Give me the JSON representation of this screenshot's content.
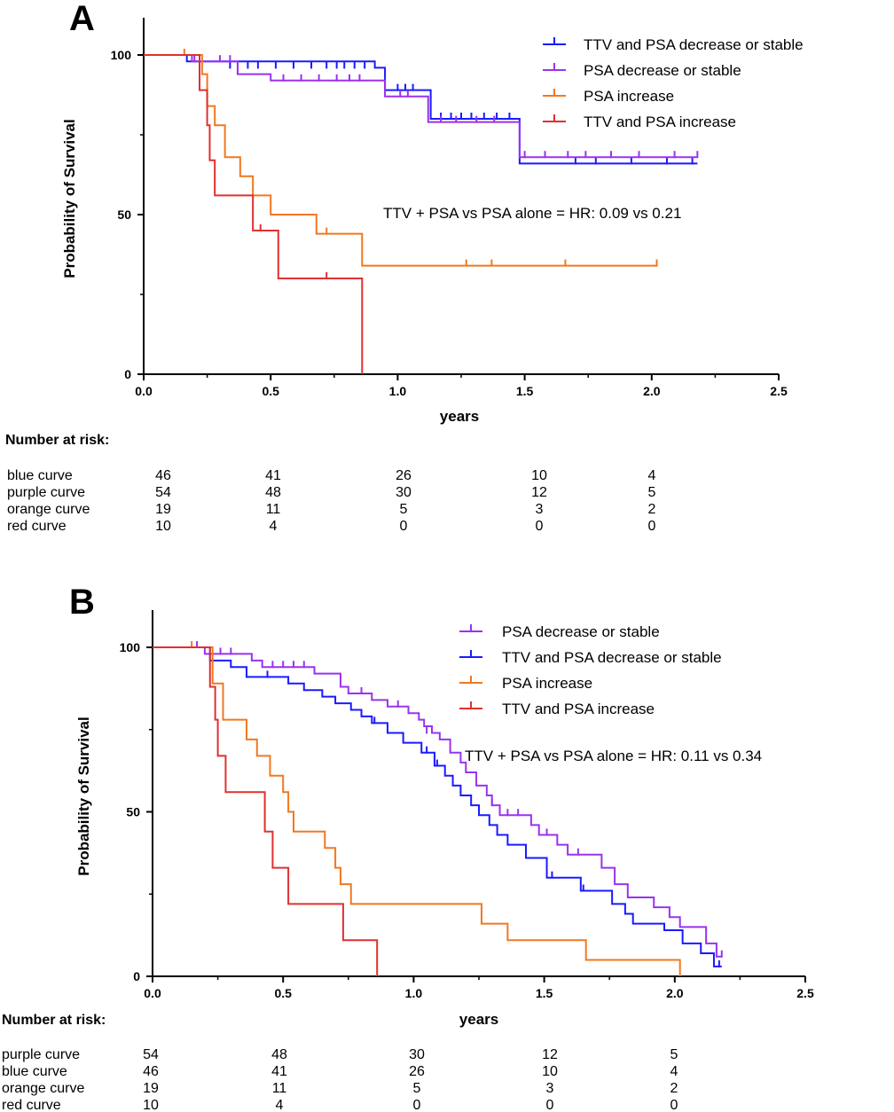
{
  "chart_data": [
    {
      "panel": "A",
      "type": "line",
      "xlabel": "years",
      "ylabel": "Probability of Survival",
      "xlim": [
        0,
        2.5
      ],
      "ylim": [
        0,
        100
      ],
      "xticks": [
        "0.0",
        "0.5",
        "1.0",
        "1.5",
        "2.0",
        "2.5"
      ],
      "yticks": [
        "0",
        "50",
        "100"
      ],
      "legend_position": "top-right",
      "annotation": "TTV + PSA vs PSA alone = HR: 0.09 vs 0.21",
      "series": [
        {
          "name": "TTV and PSA decrease or stable",
          "color": "#1a1aff",
          "steps": [
            [
              0,
              100
            ],
            [
              0.17,
              98
            ],
            [
              0.91,
              96
            ],
            [
              0.95,
              89
            ],
            [
              1.13,
              80
            ],
            [
              1.48,
              66
            ],
            [
              2.18,
              66
            ]
          ],
          "censors": [
            [
              0.34,
              96
            ],
            [
              0.41,
              96
            ],
            [
              0.45,
              96
            ],
            [
              0.52,
              96
            ],
            [
              0.59,
              96
            ],
            [
              0.66,
              96
            ],
            [
              0.72,
              96
            ],
            [
              0.76,
              96
            ],
            [
              0.79,
              96
            ],
            [
              0.83,
              96
            ],
            [
              0.87,
              96
            ],
            [
              1.0,
              89
            ],
            [
              1.03,
              89
            ],
            [
              1.06,
              89
            ],
            [
              1.17,
              80
            ],
            [
              1.21,
              80
            ],
            [
              1.25,
              80
            ],
            [
              1.29,
              80
            ],
            [
              1.34,
              80
            ],
            [
              1.39,
              80
            ],
            [
              1.44,
              80
            ],
            [
              1.7,
              66
            ],
            [
              1.78,
              66
            ],
            [
              1.92,
              66
            ],
            [
              2.06,
              66
            ],
            [
              2.16,
              66
            ]
          ]
        },
        {
          "name": "PSA decrease or stable",
          "color": "#9933ee",
          "steps": [
            [
              0,
              100
            ],
            [
              0.19,
              98
            ],
            [
              0.37,
              94
            ],
            [
              0.5,
              92
            ],
            [
              0.95,
              87
            ],
            [
              1.12,
              79
            ],
            [
              1.48,
              68
            ],
            [
              2.18,
              68
            ]
          ],
          "censors": [
            [
              0.2,
              98
            ],
            [
              0.3,
              98
            ],
            [
              0.34,
              98
            ],
            [
              0.55,
              92
            ],
            [
              0.62,
              92
            ],
            [
              0.69,
              92
            ],
            [
              0.76,
              92
            ],
            [
              0.81,
              92
            ],
            [
              0.85,
              92
            ],
            [
              1.01,
              87
            ],
            [
              1.04,
              87
            ],
            [
              1.17,
              79
            ],
            [
              1.23,
              79
            ],
            [
              1.31,
              79
            ],
            [
              1.38,
              79
            ],
            [
              1.5,
              68
            ],
            [
              1.58,
              68
            ],
            [
              1.67,
              68
            ],
            [
              1.74,
              68
            ],
            [
              1.84,
              68
            ],
            [
              1.95,
              68
            ],
            [
              2.09,
              68
            ],
            [
              2.18,
              68
            ]
          ]
        },
        {
          "name": "PSA increase",
          "color": "#f07820",
          "steps": [
            [
              0,
              100
            ],
            [
              0.23,
              94
            ],
            [
              0.25,
              84
            ],
            [
              0.28,
              78
            ],
            [
              0.32,
              68
            ],
            [
              0.38,
              62
            ],
            [
              0.43,
              56
            ],
            [
              0.5,
              50
            ],
            [
              0.68,
              44
            ],
            [
              0.86,
              34
            ],
            [
              2.02,
              34
            ]
          ],
          "censors": [
            [
              0.16,
              100
            ],
            [
              0.72,
              44
            ],
            [
              1.27,
              34
            ],
            [
              1.37,
              34
            ],
            [
              1.66,
              34
            ],
            [
              2.02,
              34
            ]
          ]
        },
        {
          "name": "TTV and PSA increase",
          "color": "#e03030",
          "steps": [
            [
              0,
              100
            ],
            [
              0.22,
              89
            ],
            [
              0.25,
              78
            ],
            [
              0.26,
              67
            ],
            [
              0.28,
              56
            ],
            [
              0.43,
              45
            ],
            [
              0.53,
              30
            ],
            [
              0.86,
              0
            ]
          ],
          "censors": [
            [
              0.46,
              45
            ],
            [
              0.72,
              30
            ]
          ]
        }
      ],
      "number_at_risk": {
        "title": "Number at risk:",
        "rows": [
          {
            "label": "blue curve",
            "values": [
              "46",
              "41",
              "26",
              "10",
              "4"
            ]
          },
          {
            "label": "purple curve",
            "values": [
              "54",
              "48",
              "30",
              "12",
              "5"
            ]
          },
          {
            "label": "orange curve",
            "values": [
              "19",
              "11",
              "5",
              "3",
              "2"
            ]
          },
          {
            "label": "red curve",
            "values": [
              "10",
              "4",
              "0",
              "0",
              "0"
            ]
          }
        ]
      }
    },
    {
      "panel": "B",
      "type": "line",
      "xlabel": "years",
      "ylabel": "Probability of Survival",
      "xlim": [
        0,
        2.5
      ],
      "ylim": [
        0,
        100
      ],
      "xticks": [
        "0.0",
        "0.5",
        "1.0",
        "1.5",
        "2.0",
        "2.5"
      ],
      "yticks": [
        "0",
        "50",
        "100"
      ],
      "legend_position": "top-right",
      "annotation": "TTV + PSA vs PSA alone = HR: 0.11 vs 0.34",
      "series": [
        {
          "name": "PSA decrease or stable",
          "color": "#9933ee",
          "steps": [
            [
              0,
              100
            ],
            [
              0.2,
              98
            ],
            [
              0.38,
              96
            ],
            [
              0.42,
              94
            ],
            [
              0.62,
              92
            ],
            [
              0.72,
              88
            ],
            [
              0.75,
              86
            ],
            [
              0.84,
              84
            ],
            [
              0.9,
              82
            ],
            [
              0.98,
              80
            ],
            [
              1.02,
              78
            ],
            [
              1.04,
              76
            ],
            [
              1.07,
              74
            ],
            [
              1.1,
              72
            ],
            [
              1.14,
              68
            ],
            [
              1.18,
              65
            ],
            [
              1.2,
              62
            ],
            [
              1.24,
              58
            ],
            [
              1.28,
              55
            ],
            [
              1.3,
              52
            ],
            [
              1.33,
              49
            ],
            [
              1.45,
              46
            ],
            [
              1.48,
              43
            ],
            [
              1.55,
              40
            ],
            [
              1.59,
              37
            ],
            [
              1.72,
              33
            ],
            [
              1.77,
              28
            ],
            [
              1.82,
              24
            ],
            [
              1.92,
              21
            ],
            [
              1.98,
              18
            ],
            [
              2.02,
              15
            ],
            [
              2.12,
              10
            ],
            [
              2.16,
              6
            ],
            [
              2.18,
              6
            ]
          ],
          "censors": [
            [
              0.17,
              100
            ],
            [
              0.26,
              98
            ],
            [
              0.3,
              98
            ],
            [
              0.46,
              94
            ],
            [
              0.5,
              94
            ],
            [
              0.54,
              94
            ],
            [
              0.58,
              94
            ],
            [
              0.8,
              86
            ],
            [
              0.94,
              82
            ],
            [
              1.05,
              74
            ],
            [
              1.3,
              52
            ],
            [
              1.36,
              49
            ],
            [
              1.4,
              49
            ],
            [
              1.51,
              43
            ],
            [
              1.63,
              37
            ],
            [
              2.18,
              6
            ]
          ]
        },
        {
          "name": "TTV and PSA decrease or stable",
          "color": "#1a1aff",
          "steps": [
            [
              0,
              100
            ],
            [
              0.22,
              96
            ],
            [
              0.3,
              94
            ],
            [
              0.36,
              91
            ],
            [
              0.52,
              89
            ],
            [
              0.58,
              87
            ],
            [
              0.65,
              85
            ],
            [
              0.7,
              83
            ],
            [
              0.76,
              81
            ],
            [
              0.8,
              79
            ],
            [
              0.84,
              77
            ],
            [
              0.9,
              74
            ],
            [
              0.96,
              71
            ],
            [
              1.03,
              68
            ],
            [
              1.08,
              64
            ],
            [
              1.12,
              61
            ],
            [
              1.15,
              58
            ],
            [
              1.18,
              55
            ],
            [
              1.22,
              52
            ],
            [
              1.25,
              49
            ],
            [
              1.29,
              46
            ],
            [
              1.32,
              43
            ],
            [
              1.36,
              40
            ],
            [
              1.43,
              36
            ],
            [
              1.51,
              30
            ],
            [
              1.64,
              26
            ],
            [
              1.76,
              22
            ],
            [
              1.81,
              19
            ],
            [
              1.84,
              16
            ],
            [
              1.96,
              14
            ],
            [
              2.03,
              10
            ],
            [
              2.1,
              7
            ],
            [
              2.15,
              3
            ],
            [
              2.18,
              3
            ]
          ],
          "censors": [
            [
              0.44,
              91
            ],
            [
              0.85,
              77
            ],
            [
              1.05,
              68
            ],
            [
              1.09,
              64
            ],
            [
              1.53,
              30
            ],
            [
              1.65,
              26
            ],
            [
              2.17,
              3
            ]
          ]
        },
        {
          "name": "PSA increase",
          "color": "#f07820",
          "steps": [
            [
              0,
              100
            ],
            [
              0.23,
              89
            ],
            [
              0.27,
              78
            ],
            [
              0.36,
              72
            ],
            [
              0.4,
              67
            ],
            [
              0.45,
              61
            ],
            [
              0.5,
              56
            ],
            [
              0.52,
              50
            ],
            [
              0.54,
              44
            ],
            [
              0.66,
              39
            ],
            [
              0.7,
              33
            ],
            [
              0.72,
              28
            ],
            [
              0.76,
              22
            ],
            [
              0.86,
              22
            ],
            [
              1.26,
              16
            ],
            [
              1.36,
              11
            ],
            [
              1.66,
              5
            ],
            [
              2.02,
              0
            ]
          ],
          "censors": [
            [
              0.15,
              100
            ]
          ]
        },
        {
          "name": "TTV and PSA increase",
          "color": "#e03030",
          "steps": [
            [
              0,
              100
            ],
            [
              0.22,
              88
            ],
            [
              0.24,
              78
            ],
            [
              0.25,
              67
            ],
            [
              0.28,
              56
            ],
            [
              0.43,
              44
            ],
            [
              0.46,
              33
            ],
            [
              0.52,
              22
            ],
            [
              0.73,
              11
            ],
            [
              0.86,
              0
            ]
          ],
          "censors": []
        }
      ],
      "number_at_risk": {
        "title": "Number at risk:",
        "rows": [
          {
            "label": "purple curve",
            "values": [
              "54",
              "48",
              "30",
              "12",
              "5"
            ]
          },
          {
            "label": "blue curve",
            "values": [
              "46",
              "41",
              "26",
              "10",
              "4"
            ]
          },
          {
            "label": "orange curve",
            "values": [
              "19",
              "11",
              "5",
              "3",
              "2"
            ]
          },
          {
            "label": "red curve",
            "values": [
              "10",
              "4",
              "0",
              "0",
              "0"
            ]
          }
        ]
      }
    }
  ]
}
